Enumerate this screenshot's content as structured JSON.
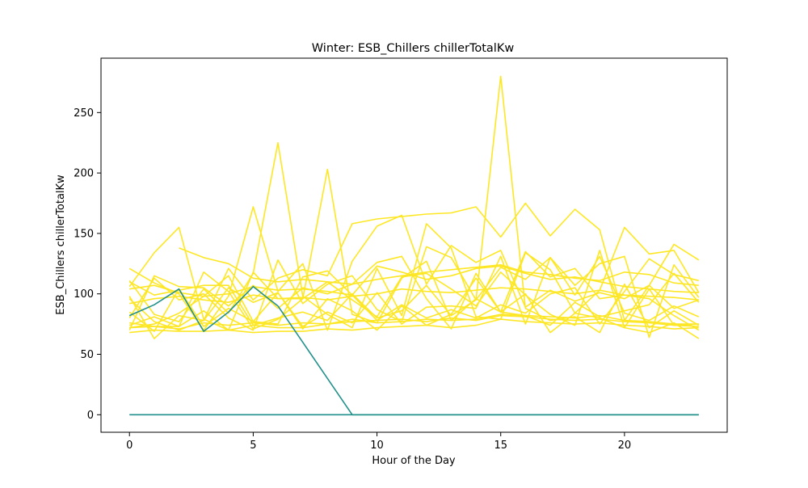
{
  "chart_data": {
    "type": "line",
    "title": "Winter: ESB_Chillers chillerTotalKw",
    "xlabel": "Hour of the Day",
    "ylabel": "ESB_Chillers chillerTotalKw",
    "xlim": [
      -1.15,
      24.15
    ],
    "ylim": [
      -14.5,
      295
    ],
    "xticks": [
      0,
      5,
      10,
      15,
      20
    ],
    "yticks": [
      0,
      50,
      100,
      150,
      200,
      250
    ],
    "grid": false,
    "legend": "none",
    "x": [
      0,
      1,
      2,
      3,
      4,
      5,
      6,
      7,
      8,
      9,
      10,
      11,
      12,
      13,
      14,
      15,
      16,
      17,
      18,
      19,
      20,
      21,
      22,
      23
    ],
    "series_colors": {
      "low": "#21918c",
      "high": "#fde725"
    },
    "series": [
      {
        "color": "#fde725",
        "values": [
          121,
          109,
          100,
          70,
          98,
          172,
          102,
          125,
          70,
          127,
          156,
          165,
          108,
          140,
          126,
          136,
          89,
          103,
          94,
          101,
          96,
          107,
          88,
          95
        ]
      },
      {
        "color": "#fde725",
        "values": [
          111,
          83,
          77,
          104,
          84,
          117,
          225,
          98,
          83,
          72,
          121,
          82,
          158,
          138,
          81,
          79,
          134,
          120,
          84,
          103,
          155,
          133,
          136,
          101
        ]
      },
      {
        "color": "#fde725",
        "values": [
          106,
          134,
          155,
          79,
          70,
          118,
          96,
          96,
          203,
          83,
          76,
          113,
          127,
          78,
          96,
          85,
          100,
          68,
          84,
          80,
          72,
          68,
          76,
          63
        ]
      },
      {
        "color": "#fde725",
        "values": [
          110,
          99,
          103,
          107,
          107,
          74,
          80,
          85,
          78,
          100,
          80,
          86,
          107,
          82,
          95,
          280,
          88,
          78,
          81,
          68,
          108,
          72,
          86,
          74
        ]
      },
      {
        "color": "#fde725",
        "values": [
          96,
          77,
          70,
          78,
          121,
          95,
          113,
          120,
          115,
          158,
          162,
          164,
          166,
          167,
          172,
          147,
          175,
          148,
          170,
          153,
          78,
          107,
          141,
          128
        ]
      },
      {
        "color": "#fde725",
        "values": [
          80,
          113,
          95,
          100,
          80,
          70,
          128,
          92,
          108,
          115,
          87,
          77,
          139,
          130,
          95,
          122,
          112,
          130,
          107,
          125,
          131,
          64,
          124,
          97
        ]
      },
      {
        "color": "#fde725",
        "values": [
          98,
          63,
          82,
          78,
          105,
          93,
          101,
          73,
          85,
          76,
          101,
          75,
          89,
          90,
          88,
          131,
          75,
          130,
          99,
          131,
          84,
          78,
          90,
          81
        ]
      },
      {
        "color": "#fde725",
        "values": [
          72,
          75,
          84,
          98,
          115,
          77,
          75,
          114,
          119,
          99,
          78,
          91,
          80,
          87,
          80,
          91,
          84,
          100,
          105,
          75,
          102,
          129,
          116,
          111
        ]
      },
      {
        "color": "#fde725",
        "values": [
          70,
          115,
          106,
          105,
          90,
          107,
          88,
          105,
          100,
          108,
          126,
          131,
          96,
          71,
          117,
          85,
          135,
          114,
          121,
          96,
          99,
          96,
          82,
          70
        ]
      },
      {
        "color": "#fde725",
        "values": [
          72,
          73,
          73,
          118,
          102,
          71,
          79,
          96,
          110,
          95,
          81,
          114,
          117,
          104,
          90,
          118,
          99,
          83,
          74,
          136,
          72,
          104,
          74,
          75
        ]
      },
      {
        "color": "#fde725",
        "values": [
          85,
          69,
          104,
          73,
          88,
          77,
          101,
          71,
          96,
          86,
          70,
          90,
          74,
          83,
          113,
          85,
          82,
          74,
          93,
          81,
          86,
          91,
          117,
          93
        ]
      },
      {
        "color": "#fde725",
        "values": [
          74,
          81,
          73,
          86,
          70,
          74,
          72,
          72,
          75,
          79,
          76,
          77,
          79,
          78,
          79,
          83,
          82,
          81,
          80,
          82,
          78,
          77,
          75,
          75
        ]
      },
      {
        "color": "#fde725",
        "values": [
          68,
          70,
          69,
          69,
          70,
          68,
          69,
          69,
          71,
          70,
          72,
          73,
          74,
          72,
          74,
          79,
          77,
          76,
          75,
          76,
          74,
          73,
          71,
          72
        ]
      },
      {
        "color": "#fde725",
        "values": [
          76,
          73,
          71,
          76,
          74,
          76,
          74,
          76,
          75,
          77,
          78,
          79,
          77,
          80,
          78,
          82,
          81,
          79,
          78,
          79,
          77,
          76,
          74,
          73
        ]
      },
      {
        "color": "#fde725",
        "values": [
          92,
          96,
          98,
          95,
          93,
          99,
          96,
          97,
          95,
          98,
          100,
          104,
          102,
          101,
          103,
          105,
          104,
          102,
          100,
          103,
          99,
          98,
          97,
          95
        ]
      },
      {
        "color": "#fde725",
        "values": [
          104,
          107,
          101,
          98,
          100,
          106,
          103,
          104,
          102,
          99,
          123,
          118,
          112,
          115,
          121,
          123,
          117,
          112,
          114,
          110,
          106,
          104,
          102,
          101
        ]
      },
      {
        "color": "#fde725",
        "values": [
          null,
          null,
          138,
          130,
          125,
          113,
          110,
          112,
          110,
          108,
          112,
          115,
          118,
          120,
          122,
          124,
          118,
          116,
          113,
          111,
          118,
          116,
          109,
          107
        ]
      },
      {
        "color": "#21918c",
        "values": [
          82,
          91,
          104,
          69,
          85,
          106,
          90,
          null,
          null,
          null,
          null,
          null,
          null,
          null,
          null,
          null,
          null,
          null,
          null,
          null,
          null,
          null,
          null,
          null
        ]
      },
      {
        "color": "#21918c",
        "values": [
          null,
          null,
          null,
          null,
          null,
          null,
          90,
          60,
          30,
          0,
          0,
          0,
          0,
          0,
          0,
          0,
          0,
          0,
          0,
          0,
          0,
          0,
          0,
          0
        ]
      },
      {
        "color": "#21918c",
        "values": [
          0,
          0,
          0,
          0,
          0,
          0,
          0,
          0,
          0,
          0,
          0,
          0,
          0,
          0,
          0,
          0,
          0,
          0,
          0,
          0,
          0,
          0,
          0,
          0
        ]
      }
    ]
  }
}
